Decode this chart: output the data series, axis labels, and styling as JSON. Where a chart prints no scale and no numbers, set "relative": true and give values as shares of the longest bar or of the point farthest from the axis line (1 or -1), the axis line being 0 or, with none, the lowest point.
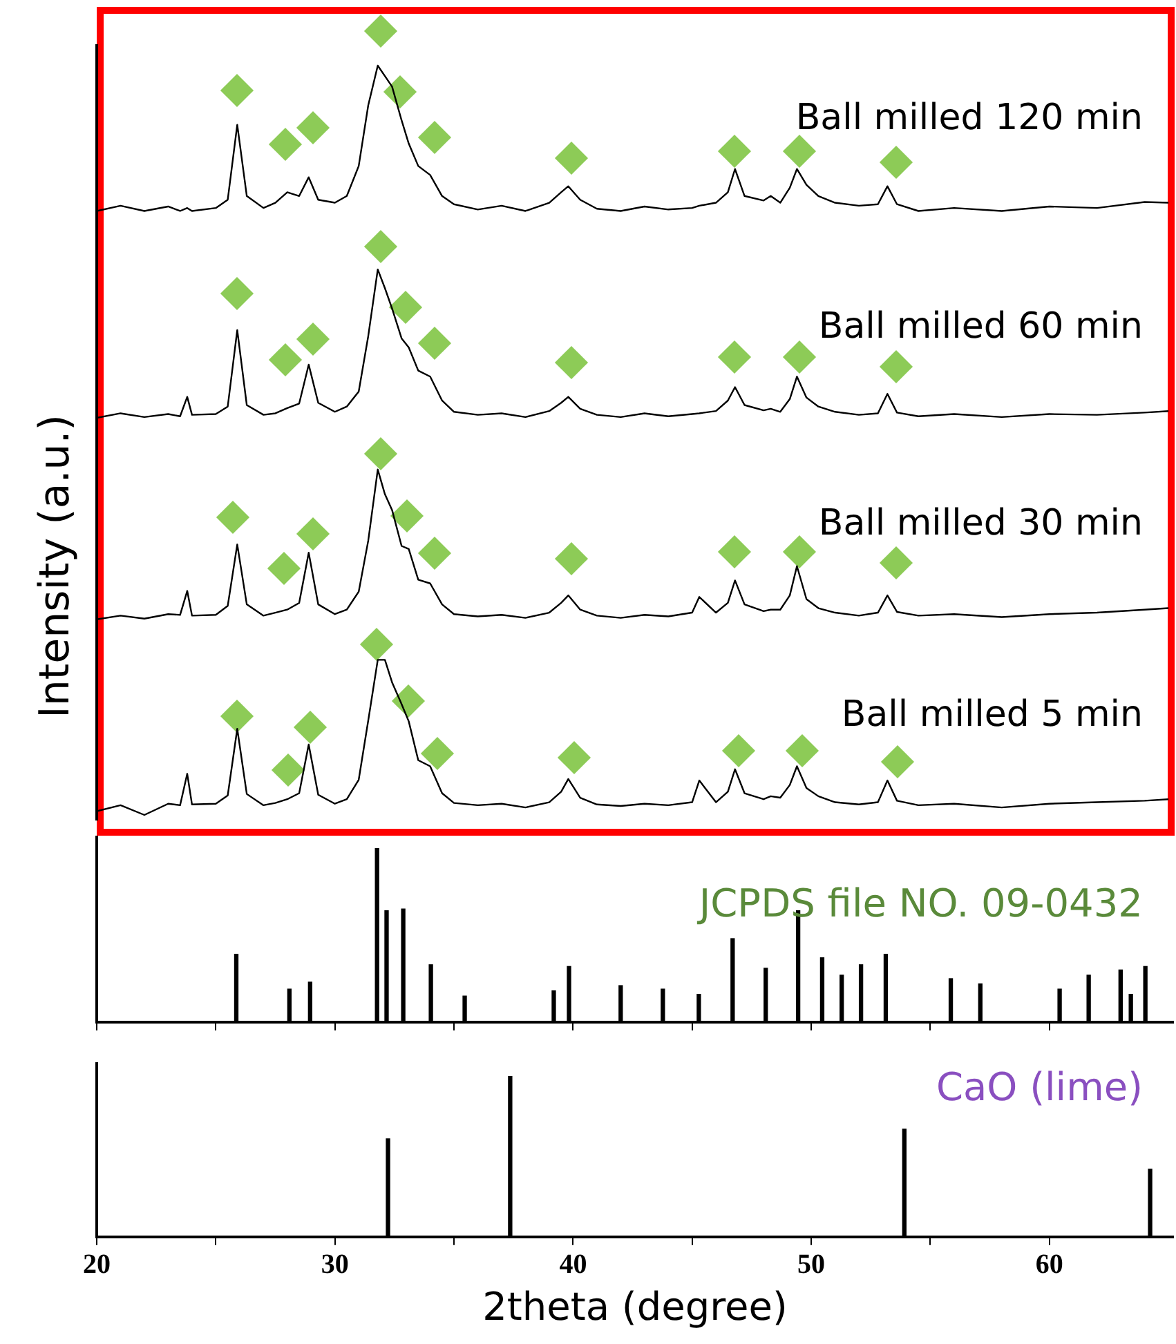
{
  "chart_data": [
    {
      "type": "line",
      "relative": true,
      "ylabel": "Intensity (a.u.)",
      "xlim": [
        20,
        65.2
      ],
      "tick_labels": false,
      "x": [
        20,
        21,
        22,
        23,
        23.5,
        23.8,
        24,
        25,
        25.5,
        25.9,
        26.3,
        27,
        27.5,
        28,
        28.5,
        28.9,
        29.3,
        30,
        30.5,
        31,
        31.4,
        31.8,
        32.1,
        32.4,
        32.8,
        33.1,
        33.5,
        34,
        34.5,
        35,
        36,
        37,
        38,
        39,
        39.5,
        39.8,
        40.3,
        41,
        42,
        43,
        44,
        45,
        45.3,
        46,
        46.5,
        46.8,
        47.2,
        48,
        48.3,
        48.7,
        49.1,
        49.4,
        49.8,
        50.3,
        51,
        52,
        52.8,
        53.2,
        53.6,
        54.5,
        56,
        58,
        60,
        62,
        64,
        65
      ],
      "series": [
        {
          "name": "Ball milled 120 min",
          "color": "#000000",
          "values": [
            0.806,
            0.813,
            0.806,
            0.812,
            0.806,
            0.81,
            0.806,
            0.81,
            0.821,
            0.921,
            0.826,
            0.81,
            0.817,
            0.831,
            0.826,
            0.851,
            0.821,
            0.817,
            0.826,
            0.866,
            0.947,
            1,
            0.986,
            0.972,
            0.927,
            0.896,
            0.866,
            0.854,
            0.826,
            0.815,
            0.808,
            0.813,
            0.806,
            0.817,
            0.831,
            0.839,
            0.821,
            0.809,
            0.806,
            0.812,
            0.808,
            0.81,
            0.813,
            0.817,
            0.831,
            0.862,
            0.826,
            0.82,
            0.826,
            0.817,
            0.837,
            0.862,
            0.841,
            0.826,
            0.817,
            0.813,
            0.815,
            0.839,
            0.815,
            0.806,
            0.81,
            0.806,
            0.812,
            0.81,
            0.818,
            0.817
          ]
        },
        {
          "name": "Ball milled 60 min",
          "color": "#000000",
          "values": [
            0.53,
            0.536,
            0.531,
            0.535,
            0.532,
            0.558,
            0.534,
            0.535,
            0.545,
            0.647,
            0.547,
            0.534,
            0.536,
            0.543,
            0.549,
            0.601,
            0.55,
            0.538,
            0.545,
            0.565,
            0.639,
            0.728,
            0.703,
            0.676,
            0.636,
            0.624,
            0.593,
            0.585,
            0.553,
            0.538,
            0.534,
            0.536,
            0.531,
            0.539,
            0.55,
            0.558,
            0.542,
            0.534,
            0.531,
            0.536,
            0.532,
            0.535,
            0.536,
            0.539,
            0.553,
            0.571,
            0.547,
            0.54,
            0.542,
            0.538,
            0.555,
            0.585,
            0.557,
            0.545,
            0.538,
            0.534,
            0.536,
            0.562,
            0.537,
            0.532,
            0.535,
            0.531,
            0.535,
            0.534,
            0.537,
            0.539
          ]
        },
        {
          "name": "Ball milled 30 min",
          "color": "#000000",
          "values": [
            0.261,
            0.266,
            0.262,
            0.268,
            0.267,
            0.299,
            0.266,
            0.267,
            0.279,
            0.361,
            0.281,
            0.266,
            0.27,
            0.274,
            0.283,
            0.35,
            0.281,
            0.268,
            0.274,
            0.298,
            0.366,
            0.461,
            0.428,
            0.407,
            0.359,
            0.355,
            0.314,
            0.309,
            0.281,
            0.268,
            0.265,
            0.267,
            0.263,
            0.27,
            0.283,
            0.293,
            0.274,
            0.266,
            0.263,
            0.267,
            0.265,
            0.27,
            0.291,
            0.27,
            0.283,
            0.313,
            0.281,
            0.272,
            0.274,
            0.274,
            0.293,
            0.332,
            0.288,
            0.276,
            0.27,
            0.266,
            0.27,
            0.293,
            0.271,
            0.266,
            0.268,
            0.264,
            0.268,
            0.27,
            0.274,
            0.276
          ]
        },
        {
          "name": "Ball milled 5 min",
          "color": "#000000",
          "values": [
            0.005,
            0.013,
            0,
            0.015,
            0.013,
            0.055,
            0.014,
            0.015,
            0.026,
            0.115,
            0.028,
            0.013,
            0.016,
            0.021,
            0.029,
            0.094,
            0.027,
            0.015,
            0.021,
            0.047,
            0.126,
            0.207,
            0.207,
            0.177,
            0.148,
            0.125,
            0.073,
            0.065,
            0.029,
            0.016,
            0.013,
            0.015,
            0.01,
            0.017,
            0.031,
            0.048,
            0.023,
            0.014,
            0.012,
            0.015,
            0.013,
            0.017,
            0.046,
            0.017,
            0.031,
            0.061,
            0.029,
            0.021,
            0.025,
            0.023,
            0.04,
            0.065,
            0.036,
            0.025,
            0.017,
            0.014,
            0.017,
            0.046,
            0.019,
            0.013,
            0.015,
            0.01,
            0.015,
            0.017,
            0.019,
            0.021
          ]
        }
      ]
    },
    {
      "type": "bar",
      "relative": true,
      "xlim": [
        20,
        65.2
      ],
      "xticks": [
        20,
        {
          "value": 25,
          "label": null
        },
        30,
        {
          "value": 35,
          "label": null
        },
        40,
        {
          "value": 45,
          "label": null
        },
        50,
        {
          "value": 55,
          "label": null
        },
        60
      ],
      "tick_labels": false,
      "series": [
        {
          "name": "JCPDS file NO. 09-0432",
          "color": "#000000",
          "x": [
            25.86,
            28.09,
            28.96,
            31.77,
            32.17,
            32.87,
            34.03,
            35.45,
            39.19,
            39.83,
            42.0,
            43.77,
            45.28,
            46.7,
            48.09,
            49.45,
            50.46,
            51.28,
            52.09,
            53.13,
            55.86,
            57.1,
            60.43,
            61.65,
            62.99,
            63.42,
            64.03
          ],
          "values": [
            0.39,
            0.19,
            0.23,
            1.0,
            0.64,
            0.65,
            0.33,
            0.15,
            0.18,
            0.32,
            0.21,
            0.19,
            0.16,
            0.48,
            0.31,
            0.64,
            0.37,
            0.27,
            0.33,
            0.39,
            0.25,
            0.22,
            0.19,
            0.27,
            0.3,
            0.16,
            0.32
          ]
        }
      ]
    },
    {
      "type": "bar",
      "relative": true,
      "xlabel": "2theta (degree)",
      "xlim": [
        20,
        65.2
      ],
      "xticks": [
        20,
        {
          "value": 25,
          "label": null
        },
        30,
        {
          "value": 35,
          "label": null
        },
        40,
        {
          "value": 45,
          "label": null
        },
        50,
        {
          "value": 55,
          "label": null
        },
        60
      ],
      "series": [
        {
          "name": "CaO (lime)",
          "color": "#000000",
          "x": [
            32.23,
            37.36,
            53.91,
            64.23
          ],
          "values": [
            0.61,
            1.0,
            0.67,
            0.42
          ]
        }
      ]
    }
  ]
}
